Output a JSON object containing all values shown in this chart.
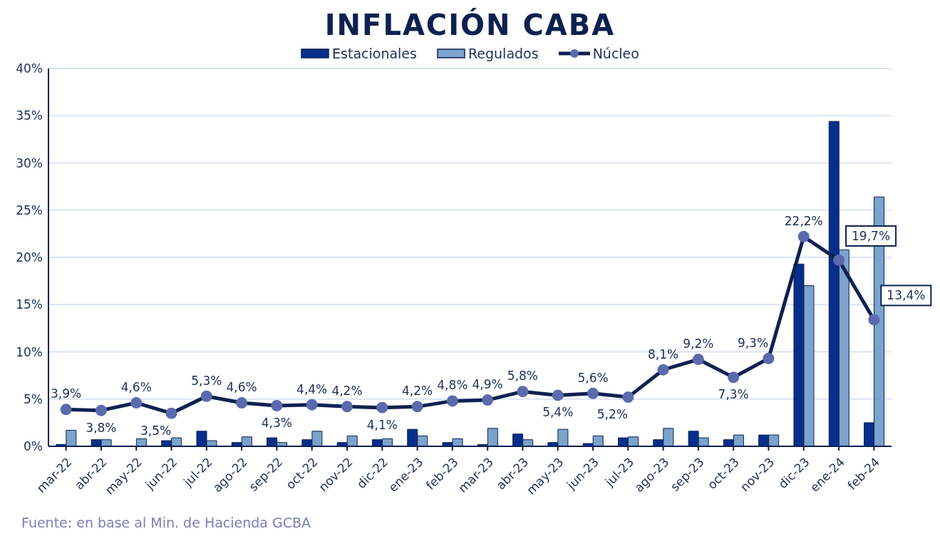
{
  "chart_data": {
    "type": "bar",
    "title": "INFLACIÓN CABA",
    "categories": [
      "mar-22",
      "abr-22",
      "may-22",
      "jun-22",
      "jul-22",
      "ago-22",
      "sep-22",
      "oct-22",
      "nov-22",
      "dic-22",
      "ene-23",
      "feb-23",
      "mar-23",
      "abr-23",
      "may-23",
      "jun-23",
      "jul-23",
      "ago-23",
      "sep-23",
      "oct-23",
      "nov-23",
      "dic-23",
      "ene-24",
      "feb-24"
    ],
    "series": [
      {
        "name": "Estacionales",
        "color": "#052f8a",
        "values": [
          0.2,
          0.7,
          0,
          0.6,
          1.6,
          0.4,
          0.9,
          0.7,
          0.4,
          0.7,
          1.8,
          0.4,
          0.2,
          1.3,
          0.4,
          0.3,
          0.9,
          0.7,
          1.6,
          0.7,
          1.2,
          19.3,
          34.4,
          2.5
        ]
      },
      {
        "name": "Regulados",
        "color": "#7ba3cc",
        "values": [
          1.7,
          0.7,
          0.8,
          0.9,
          0.6,
          1.0,
          0.4,
          1.6,
          1.1,
          0.8,
          1.1,
          0.8,
          1.9,
          0.7,
          1.8,
          1.1,
          1.0,
          1.9,
          0.9,
          1.2,
          1.2,
          17.0,
          20.8,
          26.4
        ]
      },
      {
        "name": "Núcleo",
        "type": "line",
        "color": "#0d2150",
        "marker": "circle",
        "values": [
          3.9,
          3.8,
          4.6,
          3.5,
          5.3,
          4.6,
          4.3,
          4.4,
          4.2,
          4.1,
          4.2,
          4.8,
          4.9,
          5.8,
          5.4,
          5.6,
          5.2,
          8.1,
          9.2,
          7.3,
          9.3,
          22.2,
          19.7,
          13.4
        ],
        "value_labels": [
          "3,9%",
          "3,8%",
          "4,6%",
          "3,5%",
          "5,3%",
          "4,6%",
          "4,3%",
          "4,4%",
          "4,2%",
          "4,1%",
          "4,2%",
          "4,8%",
          "4,9%",
          "5,8%",
          "5,4%",
          "5,6%",
          "5,2%",
          "8,1%",
          "9,2%",
          "7,3%",
          "9,3%",
          "22,2%",
          "19,7%",
          "13,4%"
        ]
      }
    ],
    "ylim": [
      0,
      40
    ],
    "yticks": [
      {
        "value": 0,
        "label": "0%"
      },
      {
        "value": 5,
        "label": "5%"
      },
      {
        "value": 10,
        "label": "10%"
      },
      {
        "value": 15,
        "label": "15%"
      },
      {
        "value": 20,
        "label": "20%"
      },
      {
        "value": 25,
        "label": "25%"
      },
      {
        "value": 30,
        "label": "30%"
      },
      {
        "value": 35,
        "label": "35%"
      },
      {
        "value": 40,
        "label": "40%"
      }
    ],
    "grid": "y",
    "legend": "top",
    "annotations": [
      "Fuente: en base al Min. de Hacienda GCBA"
    ]
  }
}
